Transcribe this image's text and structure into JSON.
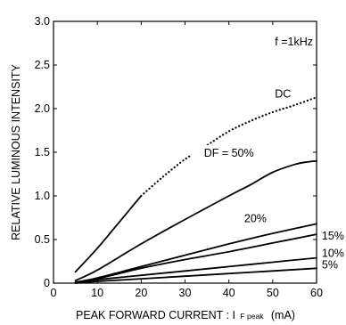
{
  "chart_data": {
    "type": "line",
    "title": "",
    "xlabel": "PEAK FORWARD CURRENT : I",
    "xlabel_subscript": "F peak",
    "xlabel_unit": "(mA)",
    "ylabel": "RELATIVE LUMINOUS INTENSITY",
    "xlim": [
      0,
      60
    ],
    "ylim": [
      0,
      3.0
    ],
    "x_ticks": [
      0,
      10,
      20,
      30,
      40,
      50,
      60
    ],
    "y_ticks": [
      0,
      0.5,
      1.0,
      1.5,
      2.0,
      2.5,
      3.0
    ],
    "x_tick_labels": [
      "0",
      "10",
      "20",
      "30",
      "40",
      "50",
      "60"
    ],
    "y_tick_labels": [
      "0",
      "0.5",
      "1.0",
      "1.5",
      "2.0",
      "2.5",
      "3.0"
    ],
    "grid": false,
    "annotation": "f =1kHz",
    "series": [
      {
        "name": "DC",
        "style": "solid",
        "points": [
          [
            5,
            0.13
          ],
          [
            10,
            0.4
          ],
          [
            15,
            0.7
          ],
          [
            20,
            1.0
          ]
        ]
      },
      {
        "name": "DC",
        "style": "dotted",
        "points": [
          [
            20,
            1.0
          ],
          [
            25,
            1.22
          ],
          [
            30,
            1.42
          ],
          [
            35,
            1.58
          ],
          [
            40,
            1.74
          ],
          [
            45,
            1.86
          ],
          [
            50,
            1.96
          ],
          [
            55,
            2.04
          ],
          [
            60,
            2.13
          ]
        ]
      },
      {
        "name": "DF = 50%",
        "style": "solid",
        "points": [
          [
            5,
            0.03
          ],
          [
            10,
            0.15
          ],
          [
            20,
            0.45
          ],
          [
            30,
            0.73
          ],
          [
            40,
            1.0
          ],
          [
            45,
            1.13
          ],
          [
            50,
            1.27
          ],
          [
            55,
            1.36
          ],
          [
            58,
            1.39
          ],
          [
            60,
            1.4
          ]
        ]
      },
      {
        "name": "20%",
        "style": "solid",
        "points": [
          [
            5,
            0.01
          ],
          [
            10,
            0.06
          ],
          [
            20,
            0.19
          ],
          [
            30,
            0.32
          ],
          [
            40,
            0.45
          ],
          [
            50,
            0.57
          ],
          [
            60,
            0.68
          ]
        ]
      },
      {
        "name": "15%",
        "style": "solid",
        "points": [
          [
            5,
            0.01
          ],
          [
            10,
            0.05
          ],
          [
            20,
            0.17
          ],
          [
            30,
            0.27
          ],
          [
            40,
            0.36
          ],
          [
            50,
            0.46
          ],
          [
            60,
            0.56
          ]
        ]
      },
      {
        "name": "10%",
        "style": "solid",
        "points": [
          [
            5,
            0.01
          ],
          [
            10,
            0.04
          ],
          [
            20,
            0.09
          ],
          [
            30,
            0.14
          ],
          [
            40,
            0.19
          ],
          [
            50,
            0.24
          ],
          [
            60,
            0.29
          ]
        ]
      },
      {
        "name": "5%",
        "style": "solid",
        "points": [
          [
            5,
            0.0
          ],
          [
            10,
            0.02
          ],
          [
            20,
            0.05
          ],
          [
            30,
            0.08
          ],
          [
            40,
            0.11
          ],
          [
            50,
            0.14
          ],
          [
            60,
            0.17
          ]
        ]
      }
    ],
    "series_labels": [
      {
        "text": "DC",
        "x": 50.5,
        "y": 2.13
      },
      {
        "text": "DF = 50%",
        "x": 40,
        "y": 1.45
      },
      {
        "text": "20%",
        "x": 43.5,
        "y": 0.7
      },
      {
        "text": "15%",
        "x": 61.2,
        "y": 0.5
      },
      {
        "text": "10%",
        "x": 61.2,
        "y": 0.3
      },
      {
        "text": "5%",
        "x": 61.2,
        "y": 0.17
      }
    ]
  }
}
